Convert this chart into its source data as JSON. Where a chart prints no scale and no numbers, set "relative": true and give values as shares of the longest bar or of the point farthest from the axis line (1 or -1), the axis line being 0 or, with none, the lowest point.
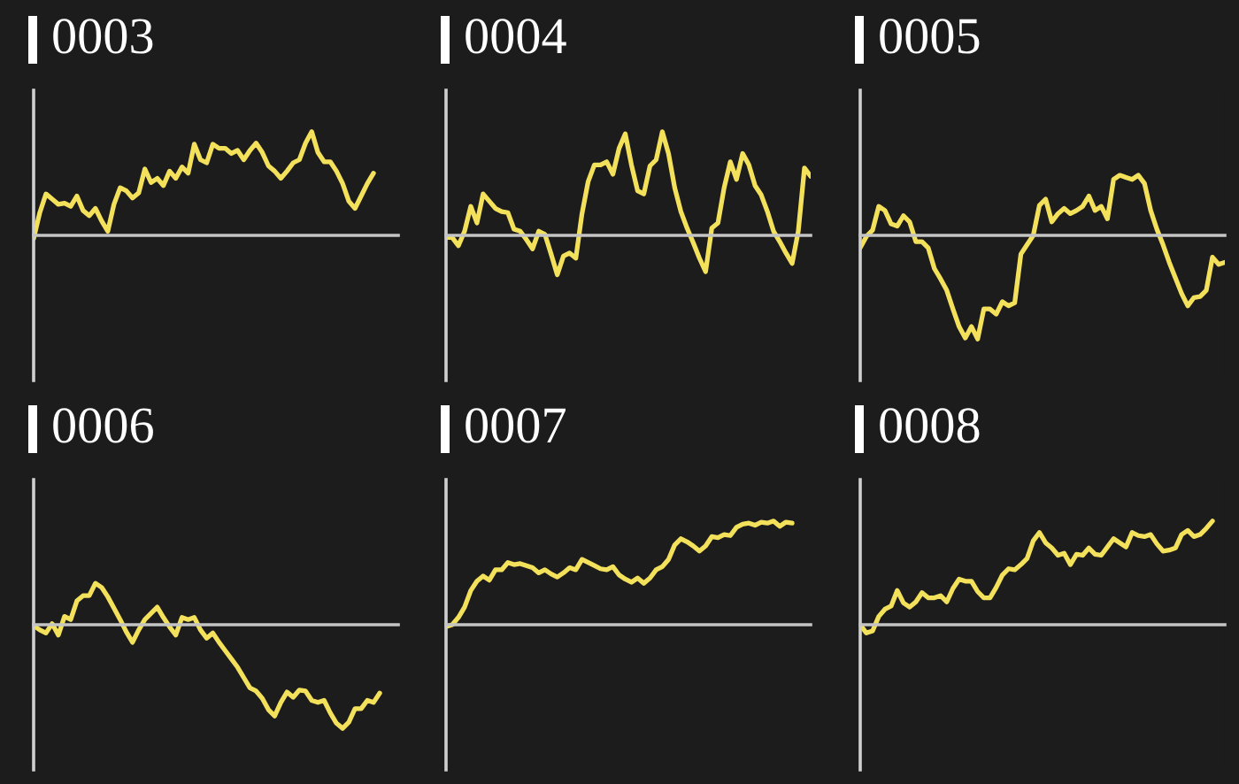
{
  "chart_data": [
    {
      "type": "line",
      "title": "0003",
      "relative": true,
      "categories": [
        null,
        null,
        null,
        null,
        null,
        null,
        null,
        null,
        null,
        null,
        null,
        null,
        null,
        null,
        null,
        null,
        null,
        null,
        null,
        null,
        null,
        null,
        null,
        null,
        null,
        null,
        null,
        null,
        null,
        null,
        null,
        null,
        null,
        null,
        null,
        null,
        null,
        null,
        null,
        null,
        null,
        null,
        null,
        null,
        null,
        null,
        null,
        null,
        null,
        null,
        null,
        null,
        null,
        null,
        null,
        null,
        null,
        null,
        null,
        null
      ],
      "series": [
        {
          "color": "#f4e15b",
          "values": [
            -0.03,
            0.22,
            0.4,
            0.35,
            0.3,
            0.31,
            0.28,
            0.38,
            0.24,
            0.19,
            0.26,
            0.14,
            0.04,
            0.3,
            0.46,
            0.43,
            0.36,
            0.41,
            0.64,
            0.51,
            0.55,
            0.48,
            0.62,
            0.55,
            0.66,
            0.6,
            0.88,
            0.73,
            0.7,
            0.88,
            0.84,
            0.84,
            0.79,
            0.82,
            0.73,
            0.82,
            0.89,
            0.8,
            0.67,
            0.62,
            0.55,
            0.62,
            0.7,
            0.73,
            0.89,
            1,
            0.8,
            0.71,
            0.71,
            0.62,
            0.5,
            0.33,
            0.26,
            0.38,
            0.5,
            0.6,
            null,
            null,
            null,
            null
          ]
        }
      ]
    },
    {
      "type": "line",
      "title": "0004",
      "relative": true,
      "categories": [
        null,
        null,
        null,
        null,
        null,
        null,
        null,
        null,
        null,
        null,
        null,
        null,
        null,
        null,
        null,
        null,
        null,
        null,
        null,
        null,
        null,
        null,
        null,
        null,
        null,
        null,
        null,
        null,
        null,
        null,
        null,
        null,
        null,
        null,
        null,
        null,
        null,
        null,
        null,
        null,
        null,
        null,
        null,
        null,
        null,
        null,
        null,
        null,
        null,
        null,
        null,
        null,
        null,
        null,
        null,
        null,
        null,
        null,
        null,
        null
      ],
      "series": [
        {
          "color": "#f4e15b",
          "values": [
            -0.02,
            -0.02,
            -0.1,
            0.04,
            0.28,
            0.12,
            0.4,
            0.33,
            0.26,
            0.23,
            0.22,
            0.06,
            0.04,
            -0.04,
            -0.13,
            0.04,
            0.01,
            -0.18,
            -0.38,
            -0.2,
            -0.17,
            -0.22,
            0.21,
            0.52,
            0.68,
            0.68,
            0.71,
            0.59,
            0.84,
            0.98,
            0.68,
            0.43,
            0.4,
            0.67,
            0.73,
            1,
            0.79,
            0.46,
            0.23,
            0.07,
            -0.07,
            -0.22,
            -0.35,
            0.07,
            0.12,
            0.46,
            0.71,
            0.54,
            0.79,
            0.68,
            0.48,
            0.39,
            0.23,
            0.04,
            -0.06,
            -0.17,
            -0.27,
            0.04,
            0.65,
            0.57
          ]
        }
      ]
    },
    {
      "type": "line",
      "title": "0005",
      "relative": true,
      "categories": [
        null,
        null,
        null,
        null,
        null,
        null,
        null,
        null,
        null,
        null,
        null,
        null,
        null,
        null,
        null,
        null,
        null,
        null,
        null,
        null,
        null,
        null,
        null,
        null,
        null,
        null,
        null,
        null,
        null,
        null,
        null,
        null,
        null,
        null,
        null,
        null,
        null,
        null,
        null,
        null,
        null,
        null,
        null,
        null,
        null,
        null,
        null,
        null,
        null,
        null,
        null,
        null,
        null,
        null,
        null,
        null,
        null,
        null,
        null,
        null
      ],
      "series": [
        {
          "color": "#f4e15b",
          "values": [
            -0.12,
            -0.01,
            0.05,
            0.28,
            0.24,
            0.11,
            0.09,
            0.19,
            0.13,
            -0.06,
            -0.06,
            -0.12,
            -0.32,
            -0.42,
            -0.53,
            -0.71,
            -0.88,
            -0.99,
            -0.88,
            -1,
            -0.71,
            -0.71,
            -0.76,
            -0.64,
            -0.68,
            -0.65,
            -0.18,
            -0.09,
            0,
            0.29,
            0.35,
            0.13,
            0.21,
            0.26,
            0.21,
            0.24,
            0.28,
            0.38,
            0.24,
            0.28,
            0.16,
            0.54,
            0.58,
            0.56,
            0.54,
            0.58,
            0.5,
            0.24,
            0.06,
            -0.09,
            -0.26,
            -0.41,
            -0.56,
            -0.68,
            -0.6,
            -0.59,
            -0.53,
            -0.21,
            -0.28,
            -0.26
          ]
        }
      ]
    },
    {
      "type": "line",
      "title": "0006",
      "relative": true,
      "categories": [
        null,
        null,
        null,
        null,
        null,
        null,
        null,
        null,
        null,
        null,
        null,
        null,
        null,
        null,
        null,
        null,
        null,
        null,
        null,
        null,
        null,
        null,
        null,
        null,
        null,
        null,
        null,
        null,
        null,
        null,
        null,
        null,
        null,
        null,
        null,
        null,
        null,
        null,
        null,
        null,
        null,
        null,
        null,
        null,
        null,
        null,
        null,
        null,
        null,
        null,
        null,
        null,
        null,
        null,
        null,
        null,
        null,
        null,
        null,
        null
      ],
      "series": [
        {
          "color": "#f4e15b",
          "values": [
            -0.01,
            -0.05,
            -0.08,
            0.01,
            -0.1,
            0.08,
            0.05,
            0.23,
            0.28,
            0.28,
            0.4,
            0.36,
            0.27,
            0.16,
            0.05,
            -0.07,
            -0.17,
            -0.05,
            0.05,
            0.11,
            0.17,
            0.07,
            -0.02,
            -0.1,
            0.07,
            0.05,
            0.07,
            -0.05,
            -0.13,
            -0.08,
            -0.17,
            -0.25,
            -0.33,
            -0.41,
            -0.51,
            -0.61,
            -0.64,
            -0.71,
            -0.82,
            -0.88,
            -0.75,
            -0.65,
            -0.7,
            -0.63,
            -0.64,
            -0.73,
            -0.75,
            -0.73,
            -0.85,
            -0.95,
            -1,
            -0.94,
            -0.81,
            -0.81,
            -0.73,
            -0.75,
            -0.66,
            null,
            null,
            null
          ]
        }
      ]
    },
    {
      "type": "line",
      "title": "0007",
      "relative": true,
      "categories": [
        null,
        null,
        null,
        null,
        null,
        null,
        null,
        null,
        null,
        null,
        null,
        null,
        null,
        null,
        null,
        null,
        null,
        null,
        null,
        null,
        null,
        null,
        null,
        null,
        null,
        null,
        null,
        null,
        null,
        null,
        null,
        null,
        null,
        null,
        null,
        null,
        null,
        null,
        null,
        null,
        null,
        null,
        null,
        null,
        null,
        null,
        null,
        null,
        null,
        null,
        null,
        null,
        null,
        null,
        null,
        null,
        null,
        null,
        null,
        null
      ],
      "series": [
        {
          "color": "#f4e15b",
          "values": [
            -0.02,
            0,
            0.07,
            0.17,
            0.33,
            0.42,
            0.47,
            0.43,
            0.53,
            0.53,
            0.6,
            0.58,
            0.59,
            0.57,
            0.55,
            0.5,
            0.53,
            0.49,
            0.46,
            0.5,
            0.55,
            0.53,
            0.63,
            0.6,
            0.57,
            0.54,
            0.53,
            0.56,
            0.48,
            0.44,
            0.41,
            0.45,
            0.4,
            0.45,
            0.53,
            0.56,
            0.63,
            0.77,
            0.83,
            0.8,
            0.76,
            0.71,
            0.76,
            0.85,
            0.84,
            0.87,
            0.86,
            0.94,
            0.97,
            0.98,
            0.96,
            0.99,
            0.98,
            1,
            0.95,
            0.99,
            0.98,
            null,
            null,
            null
          ]
        }
      ]
    },
    {
      "type": "line",
      "title": "0008",
      "relative": true,
      "categories": [
        null,
        null,
        null,
        null,
        null,
        null,
        null,
        null,
        null,
        null,
        null,
        null,
        null,
        null,
        null,
        null,
        null,
        null,
        null,
        null,
        null,
        null,
        null,
        null,
        null,
        null,
        null,
        null,
        null,
        null,
        null,
        null,
        null,
        null,
        null,
        null,
        null,
        null,
        null,
        null,
        null,
        null,
        null,
        null,
        null,
        null,
        null,
        null,
        null,
        null,
        null,
        null,
        null,
        null,
        null,
        null,
        null,
        null,
        null,
        null
      ],
      "series": [
        {
          "color": "#f4e15b",
          "values": [
            0,
            -0.08,
            -0.06,
            0.08,
            0.15,
            0.18,
            0.33,
            0.21,
            0.17,
            0.22,
            0.31,
            0.26,
            0.26,
            0.28,
            0.22,
            0.35,
            0.44,
            0.42,
            0.42,
            0.32,
            0.26,
            0.26,
            0.36,
            0.48,
            0.54,
            0.53,
            0.58,
            0.64,
            0.81,
            0.89,
            0.79,
            0.74,
            0.67,
            0.69,
            0.58,
            0.68,
            0.67,
            0.74,
            0.68,
            0.67,
            0.75,
            0.83,
            0.79,
            0.75,
            0.89,
            0.86,
            0.85,
            0.87,
            0.78,
            0.71,
            0.72,
            0.74,
            0.87,
            0.91,
            0.85,
            0.87,
            0.93,
            1,
            null,
            null
          ]
        }
      ]
    }
  ]
}
